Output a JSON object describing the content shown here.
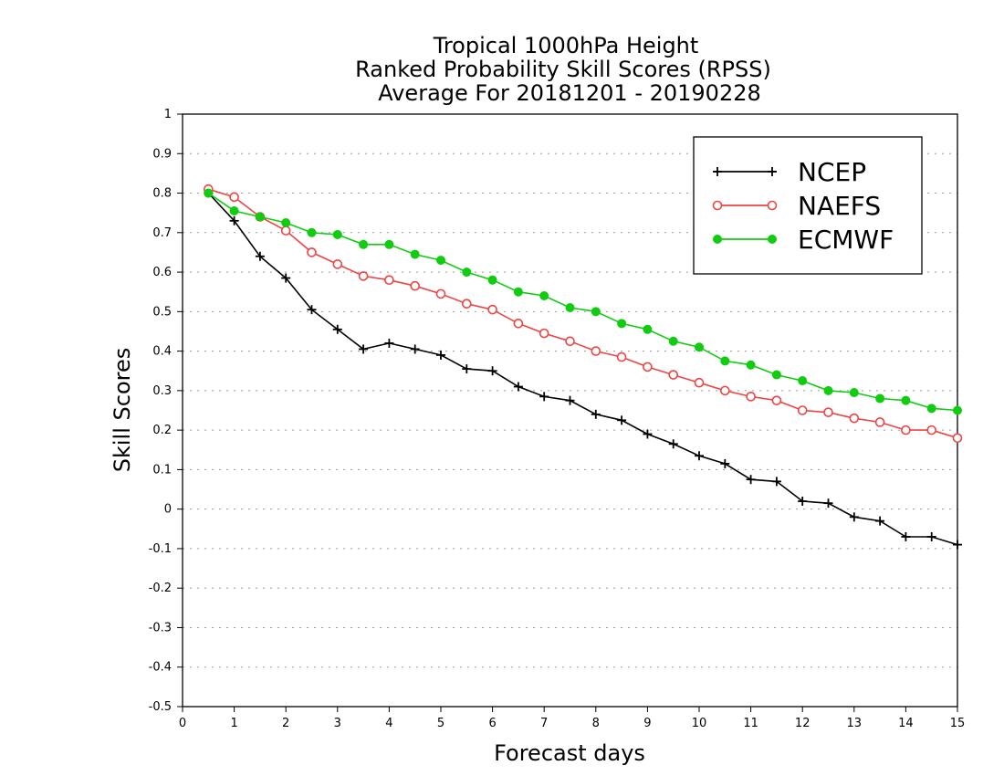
{
  "chart_data": {
    "type": "line",
    "title_lines": [
      "Tropical 1000hPa Height",
      "Ranked Probability Skill Scores (RPSS)",
      "Average For 20181201 - 20190228"
    ],
    "xlabel": "Forecast days",
    "ylabel": "Skill Scores",
    "xlim": [
      0,
      15
    ],
    "ylim": [
      -0.5,
      1
    ],
    "xticks": [
      0,
      1,
      2,
      3,
      4,
      5,
      6,
      7,
      8,
      9,
      10,
      11,
      12,
      13,
      14,
      15
    ],
    "yticks": [
      -0.5,
      -0.4,
      -0.3,
      -0.2,
      -0.1,
      0,
      0.1,
      0.2,
      0.3,
      0.4,
      0.5,
      0.6,
      0.7,
      0.8,
      0.9,
      1
    ],
    "ytick_labels": [
      "-0.5",
      "-0.4",
      "-0.3",
      "-0.2",
      "-0.1",
      "0",
      "0.1",
      "0.2",
      "0.3",
      "0.4",
      "0.5",
      "0.6",
      "0.7",
      "0.8",
      "0.9",
      "1"
    ],
    "grid": true,
    "legend_position": "top-right",
    "x": [
      0.5,
      1,
      1.5,
      2,
      2.5,
      3,
      3.5,
      4,
      4.5,
      5,
      5.5,
      6,
      6.5,
      7,
      7.5,
      8,
      8.5,
      9,
      9.5,
      10,
      10.5,
      11,
      11.5,
      12,
      12.5,
      13,
      13.5,
      14,
      14.5,
      15
    ],
    "series": [
      {
        "name": "NCEP",
        "color": "#000000",
        "marker": "plus",
        "values": [
          0.8,
          0.73,
          0.64,
          0.585,
          0.505,
          0.455,
          0.405,
          0.42,
          0.405,
          0.39,
          0.355,
          0.35,
          0.31,
          0.285,
          0.275,
          0.24,
          0.225,
          0.19,
          0.165,
          0.135,
          0.115,
          0.075,
          0.07,
          0.02,
          0.015,
          -0.02,
          -0.03,
          -0.07,
          -0.07,
          -0.09
        ]
      },
      {
        "name": "NAEFS",
        "color": "#ee4444",
        "marker": "open-circle",
        "values": [
          0.81,
          0.79,
          0.74,
          0.705,
          0.65,
          0.62,
          0.59,
          0.58,
          0.565,
          0.545,
          0.52,
          0.505,
          0.47,
          0.445,
          0.425,
          0.4,
          0.385,
          0.36,
          0.34,
          0.32,
          0.3,
          0.285,
          0.275,
          0.25,
          0.245,
          0.23,
          0.22,
          0.2,
          0.2,
          0.18
        ]
      },
      {
        "name": "ECMWF",
        "color": "#11cc11",
        "marker": "filled-circle",
        "values": [
          0.8,
          0.755,
          0.74,
          0.725,
          0.7,
          0.695,
          0.67,
          0.67,
          0.645,
          0.63,
          0.6,
          0.58,
          0.55,
          0.54,
          0.51,
          0.5,
          0.47,
          0.455,
          0.425,
          0.41,
          0.375,
          0.365,
          0.34,
          0.325,
          0.3,
          0.295,
          0.28,
          0.275,
          0.255,
          0.25
        ]
      }
    ]
  }
}
